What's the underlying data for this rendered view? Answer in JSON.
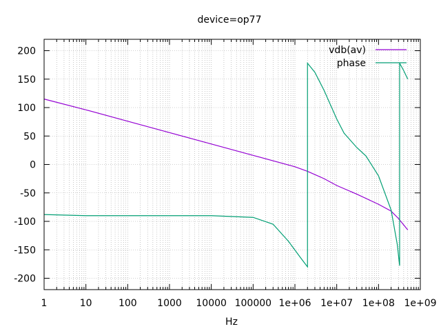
{
  "chart_data": {
    "type": "line",
    "title": "device=op77",
    "xlabel": "Hz",
    "ylabel": "",
    "xscale": "log",
    "xlim": [
      1,
      1000000000
    ],
    "ylim": [
      -220,
      220
    ],
    "x_ticks": [
      1,
      10,
      100,
      1000,
      10000,
      100000,
      1000000,
      10000000,
      100000000,
      1000000000
    ],
    "x_tick_labels": [
      "1",
      "10",
      "100",
      "1000",
      "10000",
      "100000",
      "1e+06",
      "1e+07",
      "1e+08",
      "1e+09"
    ],
    "y_ticks": [
      -200,
      -150,
      -100,
      -50,
      0,
      50,
      100,
      150,
      200
    ],
    "y_tick_labels": [
      "-200",
      "-150",
      "-100",
      "-50",
      "0",
      "50",
      "100",
      "150",
      "200"
    ],
    "grid": true,
    "legend_position": "top-right",
    "series": [
      {
        "name": "vdb(av)",
        "color": "#9400d3",
        "points": [
          [
            1,
            115
          ],
          [
            10,
            96
          ],
          [
            100,
            76
          ],
          [
            1000,
            56
          ],
          [
            10000,
            36
          ],
          [
            100000,
            16
          ],
          [
            1000000,
            -4
          ],
          [
            2000000,
            -12
          ],
          [
            5000000,
            -25
          ],
          [
            10000000,
            -37
          ],
          [
            30000000,
            -52
          ],
          [
            100000000,
            -70
          ],
          [
            200000000,
            -82
          ],
          [
            300000000,
            -95
          ],
          [
            500000000,
            -115
          ]
        ]
      },
      {
        "name": "phase",
        "color": "#009e73",
        "points": [
          [
            1,
            -88
          ],
          [
            10,
            -90
          ],
          [
            100,
            -90
          ],
          [
            1000,
            -90
          ],
          [
            10000,
            -90
          ],
          [
            100000,
            -93
          ],
          [
            300000,
            -105
          ],
          [
            700000,
            -135
          ],
          [
            1400000,
            -165
          ],
          [
            2000000,
            -180
          ],
          [
            2000001,
            178
          ],
          [
            3000000,
            162
          ],
          [
            5000000,
            130
          ],
          [
            10000000,
            80
          ],
          [
            15000000,
            55
          ],
          [
            30000000,
            30
          ],
          [
            50000000,
            15
          ],
          [
            100000000,
            -20
          ],
          [
            200000000,
            -80
          ],
          [
            280000000,
            -140
          ],
          [
            320000000,
            -178
          ],
          [
            320000001,
            178
          ],
          [
            400000000,
            165
          ],
          [
            500000000,
            150
          ]
        ]
      }
    ]
  }
}
